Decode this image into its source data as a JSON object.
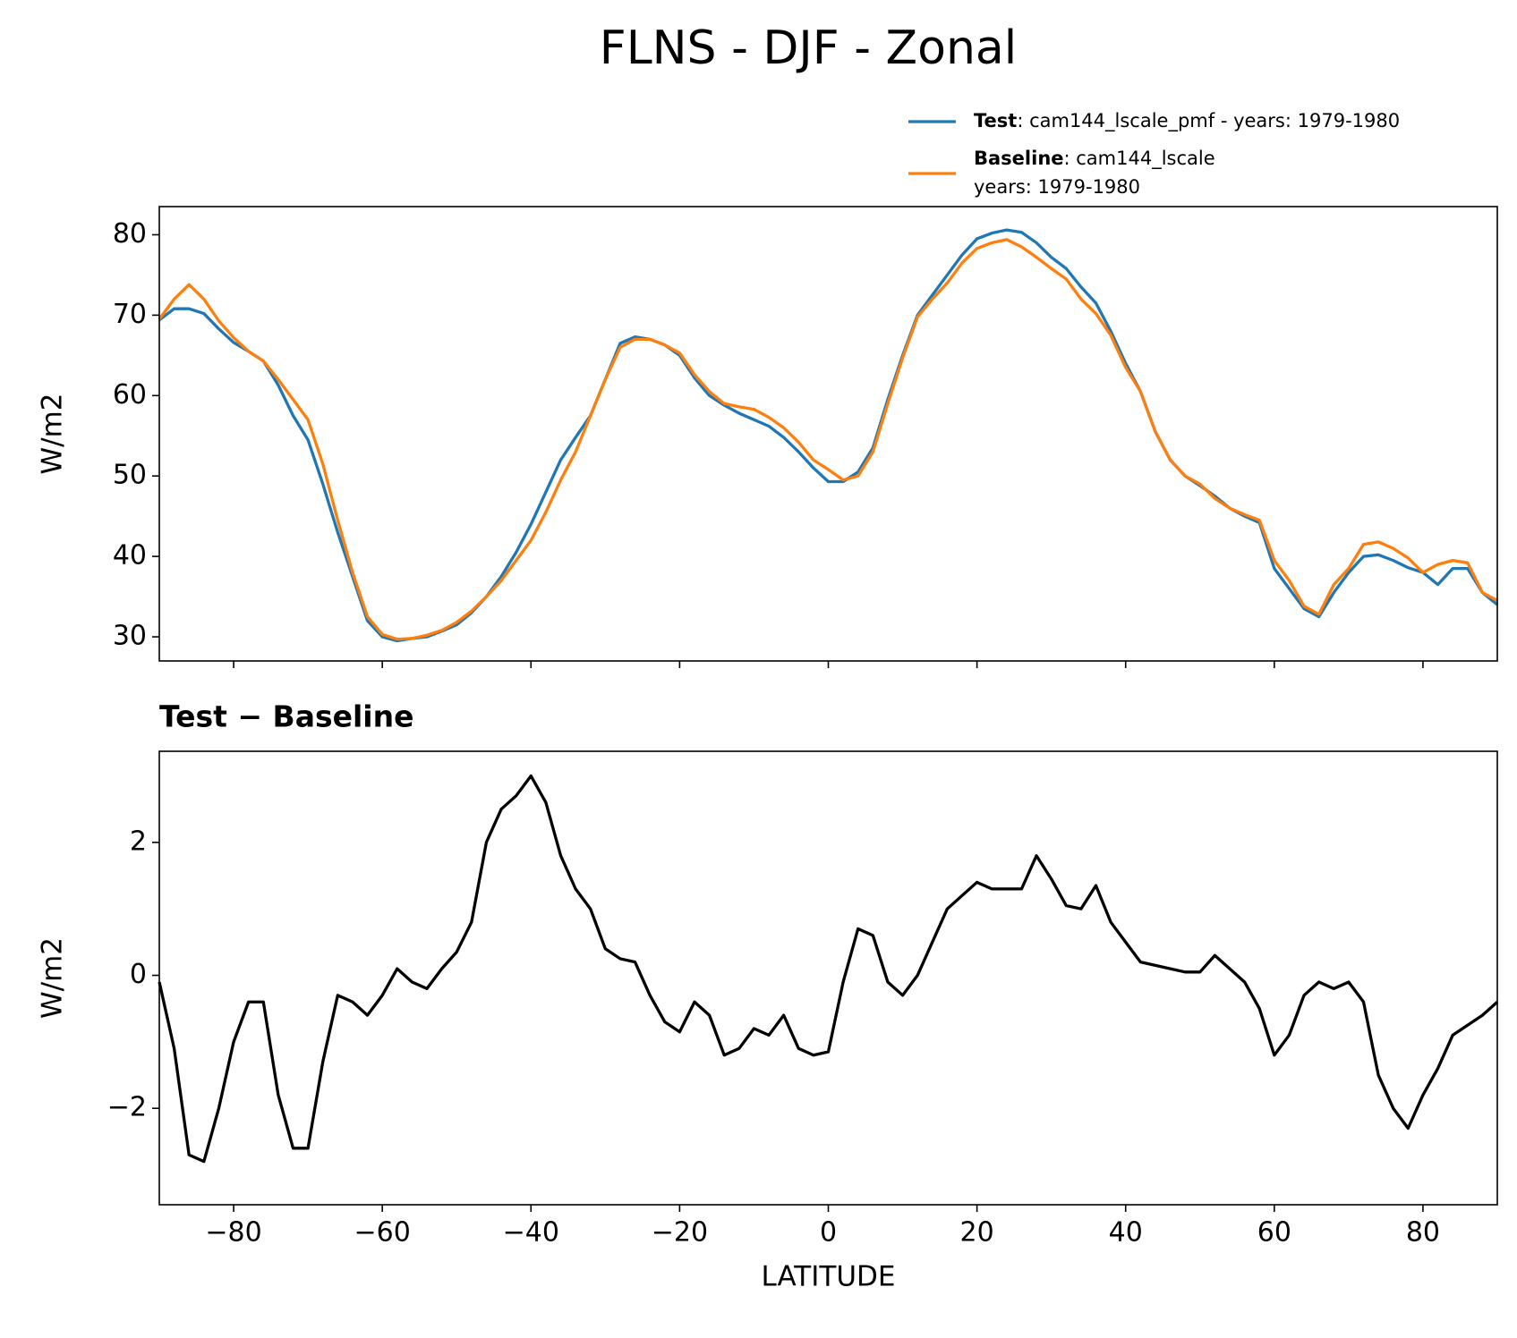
{
  "chart_data": [
    {
      "type": "line",
      "title": "FLNS - DJF - Zonal",
      "ylabel": "W/m2",
      "x": [
        -90,
        -88,
        -86,
        -84,
        -82,
        -80,
        -78,
        -76,
        -74,
        -72,
        -70,
        -68,
        -66,
        -64,
        -62,
        -60,
        -58,
        -56,
        -54,
        -52,
        -50,
        -48,
        -46,
        -44,
        -42,
        -40,
        -38,
        -36,
        -34,
        -32,
        -30,
        -28,
        -26,
        -24,
        -22,
        -20,
        -18,
        -16,
        -14,
        -12,
        -10,
        -8,
        -6,
        -4,
        -2,
        0,
        2,
        4,
        6,
        8,
        10,
        12,
        14,
        16,
        18,
        20,
        22,
        24,
        26,
        28,
        30,
        32,
        34,
        36,
        38,
        40,
        42,
        44,
        46,
        48,
        50,
        52,
        54,
        56,
        58,
        60,
        62,
        64,
        66,
        68,
        70,
        72,
        74,
        76,
        78,
        80,
        82,
        84,
        86,
        88,
        90
      ],
      "series": [
        {
          "name": "Test",
          "detail": [
            ": cam144_lscale_pmf - years: 1979-1980"
          ],
          "color": "#1f77b4",
          "values": [
            69.4,
            70.8,
            70.8,
            70.2,
            68.3,
            66.6,
            65.5,
            64.3,
            61.3,
            57.5,
            54.5,
            49.0,
            43.0,
            37.5,
            32.0,
            30.0,
            29.5,
            29.8,
            30.0,
            30.7,
            31.5,
            33.0,
            35.0,
            37.5,
            40.5,
            44.0,
            48.0,
            52.0,
            54.8,
            57.5,
            62.0,
            66.5,
            67.3,
            67.0,
            66.3,
            65.0,
            62.2,
            60.0,
            58.8,
            57.8,
            57.0,
            56.2,
            54.8,
            53.0,
            51.0,
            49.3,
            49.3,
            50.5,
            53.5,
            59.5,
            65.0,
            70.0,
            72.5,
            75.0,
            77.5,
            79.5,
            80.2,
            80.6,
            80.3,
            79.0,
            77.2,
            75.8,
            73.5,
            71.5,
            68.0,
            64.0,
            60.5,
            55.5,
            52.0,
            50.0,
            48.8,
            47.5,
            46.0,
            45.0,
            44.2,
            38.5,
            36.0,
            33.5,
            32.5,
            35.5,
            38.0,
            40.0,
            40.2,
            39.5,
            38.6,
            38.0,
            36.5,
            38.5,
            38.5,
            35.5,
            34.0
          ]
        },
        {
          "name": "Baseline",
          "detail": [
            ": cam144_lscale",
            "years: 1979-1980"
          ],
          "color": "#ff7f0e",
          "values": [
            69.5,
            72.0,
            73.8,
            72.0,
            69.3,
            67.2,
            65.5,
            64.3,
            62.0,
            59.5,
            57.0,
            51.5,
            44.5,
            38.0,
            32.5,
            30.3,
            29.7,
            29.8,
            30.2,
            30.8,
            31.8,
            33.2,
            35.0,
            37.0,
            39.5,
            42.0,
            45.5,
            49.5,
            53.0,
            57.5,
            62.0,
            66.0,
            67.0,
            67.0,
            66.3,
            65.3,
            62.6,
            60.5,
            59.0,
            58.6,
            58.3,
            57.3,
            56.0,
            54.2,
            52.0,
            50.8,
            49.5,
            50.0,
            53.0,
            59.0,
            64.7,
            69.8,
            72.0,
            74.0,
            76.5,
            78.3,
            79.0,
            79.4,
            78.5,
            77.2,
            75.8,
            74.5,
            72.0,
            70.2,
            67.5,
            63.5,
            60.5,
            55.5,
            52.0,
            50.0,
            49.0,
            47.2,
            46.0,
            45.2,
            44.5,
            39.5,
            37.0,
            33.8,
            32.8,
            36.5,
            38.5,
            41.5,
            41.8,
            41.0,
            39.8,
            38.0,
            39.0,
            39.5,
            39.2,
            35.5,
            34.5
          ]
        }
      ],
      "xlim": [
        -90,
        90
      ],
      "xticks": [
        -80,
        -60,
        -40,
        -20,
        0,
        20,
        40,
        60,
        80
      ],
      "ylim": [
        27,
        83.5
      ],
      "yticks": [
        30,
        40,
        50,
        60,
        70,
        80
      ]
    },
    {
      "type": "line",
      "title": "Test − Baseline",
      "ylabel": "W/m2",
      "xlabel": "LATITUDE",
      "x": [
        -90,
        -88,
        -86,
        -84,
        -82,
        -80,
        -78,
        -76,
        -74,
        -72,
        -70,
        -68,
        -66,
        -64,
        -62,
        -60,
        -58,
        -56,
        -54,
        -52,
        -50,
        -48,
        -46,
        -44,
        -42,
        -40,
        -38,
        -36,
        -34,
        -32,
        -30,
        -28,
        -26,
        -24,
        -22,
        -20,
        -18,
        -16,
        -14,
        -12,
        -10,
        -8,
        -6,
        -4,
        -2,
        0,
        2,
        4,
        6,
        8,
        10,
        12,
        14,
        16,
        18,
        20,
        22,
        24,
        26,
        28,
        30,
        32,
        34,
        36,
        38,
        40,
        42,
        44,
        46,
        48,
        50,
        52,
        54,
        56,
        58,
        60,
        62,
        64,
        66,
        68,
        70,
        72,
        74,
        76,
        78,
        80,
        82,
        84,
        86,
        88,
        90
      ],
      "series": [
        {
          "color": "#000000",
          "values": [
            -0.1,
            -1.1,
            -2.7,
            -2.8,
            -2.0,
            -1.0,
            -0.4,
            -0.4,
            -1.8,
            -2.6,
            -2.6,
            -1.3,
            -0.3,
            -0.4,
            -0.6,
            -0.3,
            0.1,
            -0.1,
            -0.2,
            0.1,
            0.35,
            0.8,
            2.0,
            2.5,
            2.7,
            3.0,
            2.6,
            1.8,
            1.3,
            1.0,
            0.4,
            0.25,
            0.2,
            -0.3,
            -0.7,
            -0.85,
            -0.4,
            -0.6,
            -1.2,
            -1.1,
            -0.8,
            -0.9,
            -0.6,
            -1.1,
            -1.2,
            -1.15,
            -0.1,
            0.7,
            0.6,
            -0.1,
            -0.3,
            0.0,
            0.5,
            1.0,
            1.2,
            1.4,
            1.3,
            1.3,
            1.3,
            1.8,
            1.45,
            1.05,
            1.0,
            1.35,
            0.8,
            0.5,
            0.2,
            0.15,
            0.1,
            0.05,
            0.05,
            0.3,
            0.1,
            -0.1,
            -0.5,
            -1.2,
            -0.9,
            -0.3,
            -0.1,
            -0.2,
            -0.1,
            -0.4,
            -1.5,
            -2.0,
            -2.3,
            -1.8,
            -1.4,
            -0.9,
            -0.75,
            -0.6,
            -0.4
          ]
        }
      ],
      "xlim": [
        -90,
        90
      ],
      "xticks": [
        {
          "value": -80,
          "label": "−80"
        },
        {
          "value": -60,
          "label": "−60"
        },
        {
          "value": -40,
          "label": "−40"
        },
        {
          "value": -20,
          "label": "−20"
        },
        0,
        20,
        40,
        60,
        80
      ],
      "ylim": [
        -3.45,
        3.37
      ],
      "yticks": [
        {
          "value": -2,
          "label": "−2"
        },
        0,
        2
      ]
    }
  ]
}
